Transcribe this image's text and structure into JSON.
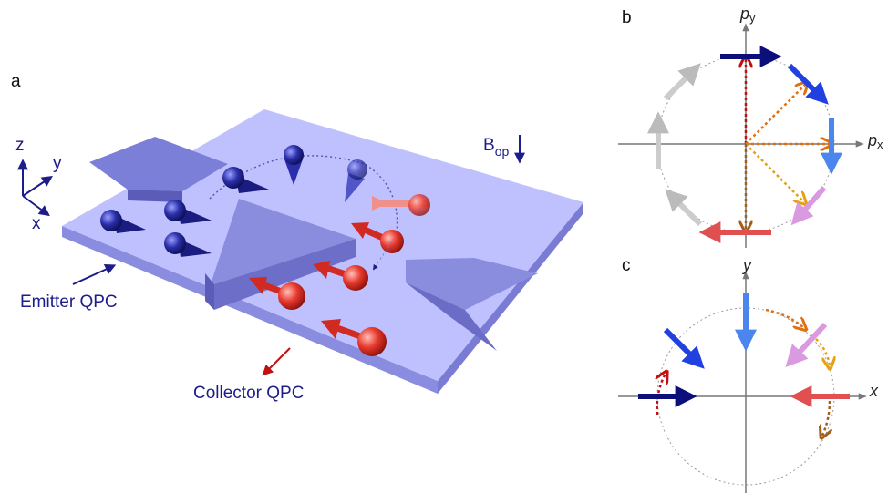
{
  "panels": [
    {
      "label": "a",
      "axes": {
        "z": "z",
        "y": "y",
        "x": "x"
      },
      "field": {
        "symbol": "B",
        "subscript": "op"
      },
      "emitter": "Emitter QPC",
      "collector": "Collector QPC"
    },
    {
      "label": "b",
      "vertical_axis": {
        "symbol": "p",
        "subscript": "y"
      },
      "horizontal_axis": {
        "symbol": "p",
        "subscript": "x"
      }
    },
    {
      "label": "c",
      "vertical_axis": "y",
      "horizontal_axis": "x"
    }
  ]
}
